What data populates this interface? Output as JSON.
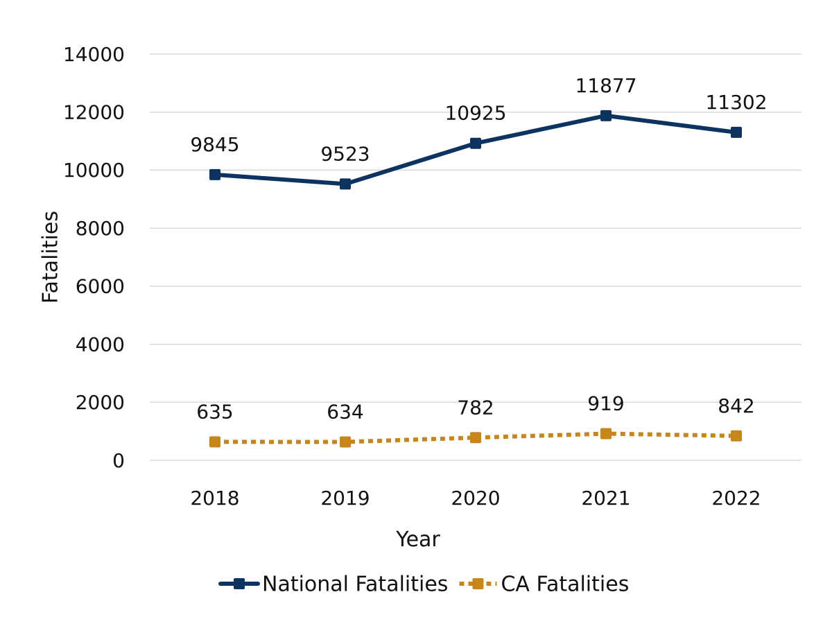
{
  "chart_data": {
    "type": "line",
    "title": "",
    "xlabel": "Year",
    "ylabel": "Fatalities",
    "categories": [
      "2018",
      "2019",
      "2020",
      "2021",
      "2022"
    ],
    "ylim": [
      0,
      14000
    ],
    "yticks": [
      "0",
      "2000",
      "4000",
      "6000",
      "8000",
      "10000",
      "12000",
      "14000"
    ],
    "grid": true,
    "legend_position": "bottom",
    "series": [
      {
        "name": "National Fatalities",
        "values": [
          9845,
          9523,
          10925,
          11877,
          11302
        ],
        "labels": [
          "9845",
          "9523",
          "10925",
          "11877",
          "11302"
        ],
        "color": "#0d3461",
        "line_style": "solid",
        "marker": "square"
      },
      {
        "name": "CA Fatalities",
        "values": [
          635,
          634,
          782,
          919,
          842
        ],
        "labels": [
          "635",
          "634",
          "782",
          "919",
          "842"
        ],
        "color": "#c8861a",
        "line_style": "dotted",
        "marker": "square"
      }
    ]
  }
}
